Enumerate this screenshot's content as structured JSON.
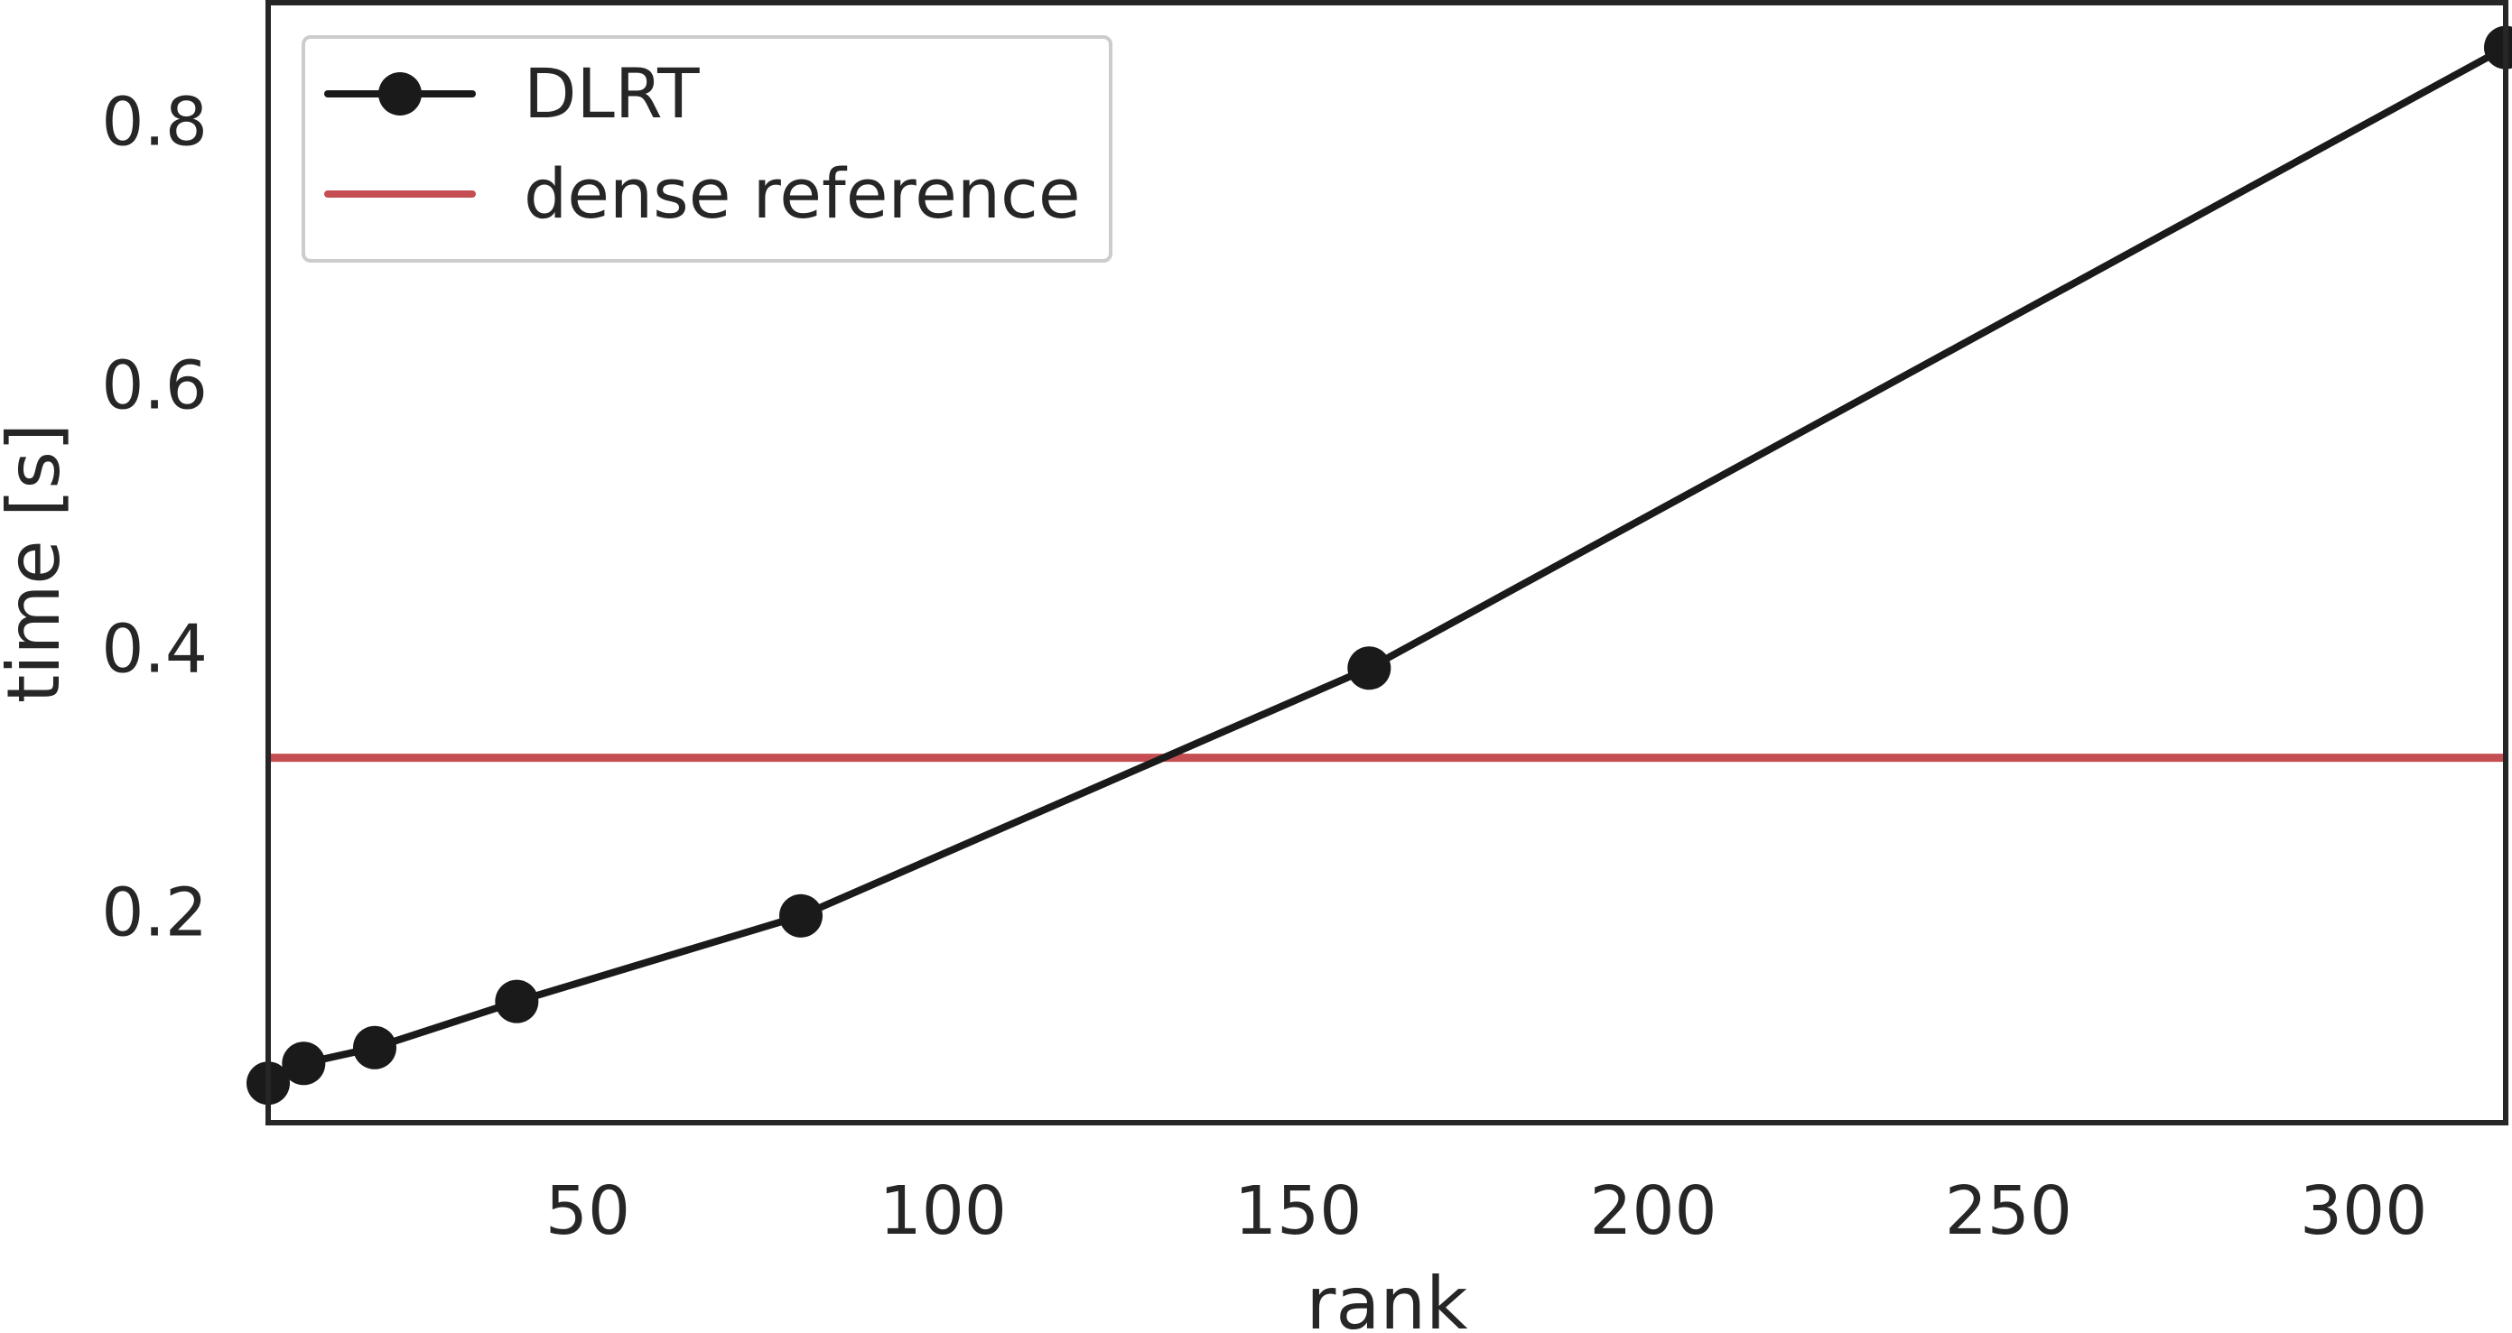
{
  "chart_data": {
    "type": "line",
    "xlabel": "rank",
    "ylabel": "time [s]",
    "xlim": [
      5,
      320
    ],
    "ylim": [
      0.04,
      0.89
    ],
    "xticks": [
      50,
      100,
      150,
      200,
      250,
      300
    ],
    "yticks": [
      0.2,
      0.4,
      0.6,
      0.8
    ],
    "grid": false,
    "legend_position": "top-left",
    "series": [
      {
        "name": "DLRT",
        "x": [
          5,
          10,
          20,
          40,
          80,
          160,
          320
        ],
        "y": [
          0.07,
          0.085,
          0.097,
          0.132,
          0.197,
          0.385,
          0.856
        ],
        "color": "#1a1a1a",
        "marker": "circle"
      },
      {
        "name": "dense reference",
        "type": "hline",
        "y": 0.317,
        "color": "#c44e52"
      }
    ]
  }
}
